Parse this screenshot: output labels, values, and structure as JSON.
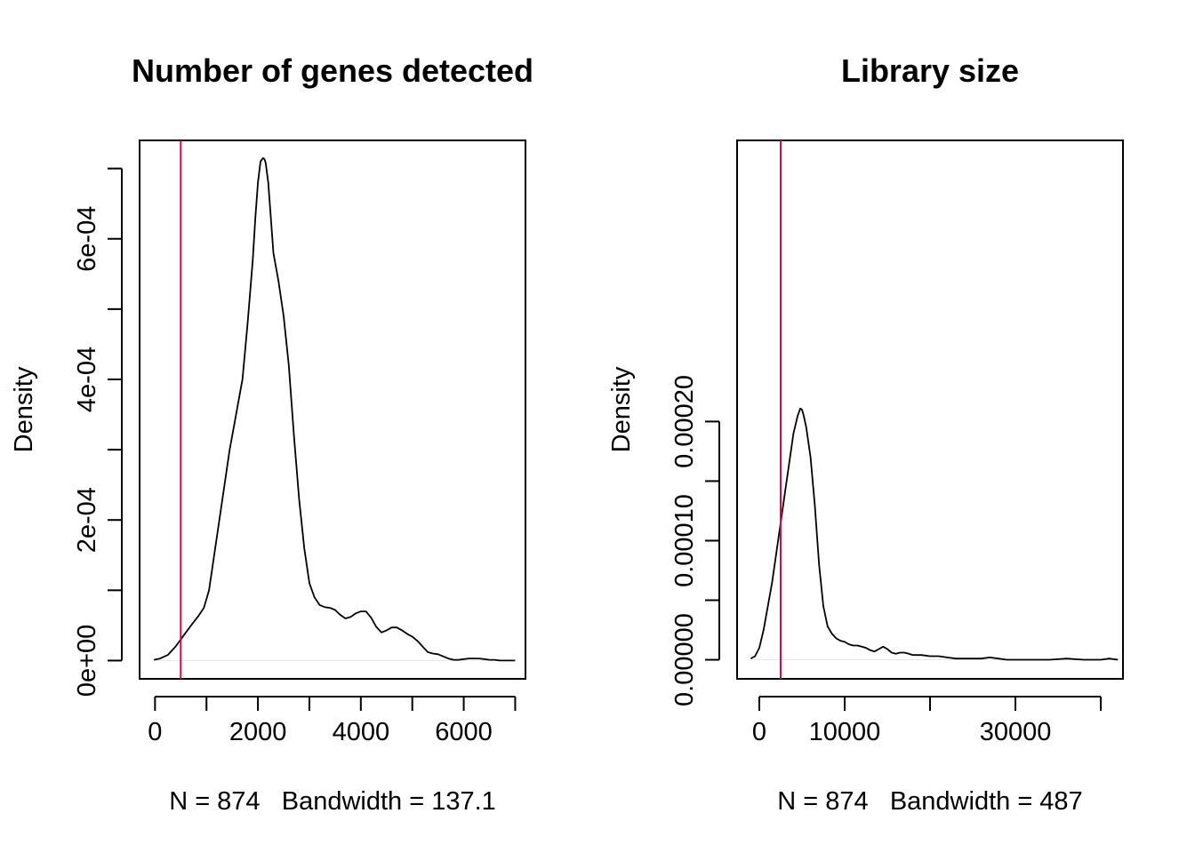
{
  "chart_data": [
    {
      "type": "line",
      "title": "Number of genes detected",
      "xlabel": "N = 874   Bandwidth = 137.1",
      "ylabel": "Density",
      "xlim": [
        -300,
        7200
      ],
      "ylim": [
        -2.6e-05,
        0.00074
      ],
      "x_ticks": [
        0,
        1000,
        2000,
        3000,
        4000,
        5000,
        6000,
        7000
      ],
      "x_tick_labels": [
        {
          "value": 0,
          "label": "0"
        },
        {
          "value": 2000,
          "label": "2000"
        },
        {
          "value": 4000,
          "label": "4000"
        },
        {
          "value": 6000,
          "label": "6000"
        }
      ],
      "y_ticks": [
        0,
        0.0001,
        0.0002,
        0.0003,
        0.0004,
        0.0005,
        0.0006,
        0.0007
      ],
      "y_tick_labels": [
        {
          "value": 0,
          "label": "0e+00"
        },
        {
          "value": 0.0002,
          "label": "2e-04"
        },
        {
          "value": 0.0004,
          "label": "4e-04"
        },
        {
          "value": 0.0006,
          "label": "6e-04"
        }
      ],
      "vline": {
        "x": 500,
        "color": "#cd0b4b"
      },
      "series": [
        {
          "color": "#000000",
          "x": [
            -20,
            100,
            250,
            400,
            550,
            700,
            850,
            950,
            1050,
            1150,
            1250,
            1350,
            1450,
            1550,
            1650,
            1700,
            1800,
            1900,
            1950,
            2000,
            2050,
            2100,
            2130,
            2150,
            2200,
            2250,
            2300,
            2350,
            2400,
            2500,
            2600,
            2700,
            2800,
            2900,
            3000,
            3100,
            3200,
            3300,
            3400,
            3500,
            3600,
            3700,
            3800,
            3900,
            4000,
            4100,
            4200,
            4300,
            4400,
            4500,
            4600,
            4700,
            4800,
            4900,
            5000,
            5100,
            5200,
            5300,
            5400,
            5500,
            5600,
            5700,
            5800,
            5900,
            6000,
            6100,
            6200,
            6300,
            6400,
            6500,
            6600,
            6700,
            6800,
            6900,
            7000
          ],
          "y": [
            1e-06,
            3e-06,
            8e-06,
            2e-05,
            3.5e-05,
            5e-05,
            6.4e-05,
            7.5e-05,
            0.0001,
            0.00015,
            0.0002,
            0.00025,
            0.0003,
            0.00034,
            0.00038,
            0.0004,
            0.00048,
            0.00057,
            0.00063,
            0.00068,
            0.00071,
            0.000715,
            0.000713,
            0.000708,
            0.00068,
            0.00063,
            0.00058,
            0.00056,
            0.00054,
            0.00049,
            0.00042,
            0.00032,
            0.00023,
            0.00016,
            0.00011,
            9e-05,
            7.9e-05,
            7.6e-05,
            7.5e-05,
            7.2e-05,
            6.5e-05,
            6e-05,
            6.2e-05,
            6.7e-05,
            7e-05,
            7e-05,
            6.1e-05,
            4.8e-05,
            4e-05,
            4.3e-05,
            4.7e-05,
            4.7e-05,
            4.3e-05,
            3.8e-05,
            3.4e-05,
            2.8e-05,
            2e-05,
            1.2e-05,
            1e-05,
            9e-06,
            6e-06,
            3e-06,
            1e-06,
            1e-06,
            2e-06,
            3e-06,
            3e-06,
            3e-06,
            2e-06,
            1e-06,
            1e-06,
            0.0,
            0.0,
            0.0,
            0.0
          ]
        }
      ]
    },
    {
      "type": "line",
      "title": "Library size",
      "xlabel": "N = 874   Bandwidth = 487",
      "ylabel": "Density",
      "xlim": [
        -2600,
        42600
      ],
      "ylim": [
        -1.6e-05,
        0.000436
      ],
      "x_ticks": [
        0,
        10000,
        20000,
        30000,
        40000
      ],
      "x_tick_labels": [
        {
          "value": 0,
          "label": "0"
        },
        {
          "value": 10000,
          "label": "10000"
        },
        {
          "value": 30000,
          "label": "30000"
        }
      ],
      "y_ticks": [
        0,
        5e-05,
        0.0001,
        0.00015,
        0.0002
      ],
      "y_tick_labels": [
        {
          "value": 0,
          "label": "0.00000"
        },
        {
          "value": 0.0001,
          "label": "0.00010"
        },
        {
          "value": 0.0002,
          "label": "0.00020"
        }
      ],
      "vline": {
        "x": 2500,
        "color": "#cd0b4b"
      },
      "series": [
        {
          "color": "#000000",
          "x": [
            -1000,
            -500,
            0,
            500,
            1000,
            1500,
            2000,
            2500,
            3000,
            3500,
            4000,
            4500,
            4800,
            5000,
            5200,
            5500,
            6000,
            6500,
            7000,
            7500,
            8000,
            8500,
            9000,
            9500,
            10000,
            10500,
            11000,
            11500,
            12000,
            12500,
            13000,
            13500,
            14000,
            14500,
            15000,
            15500,
            16000,
            16500,
            17000,
            17500,
            18000,
            19000,
            20000,
            21000,
            22000,
            23000,
            24000,
            25000,
            26000,
            27000,
            28000,
            29000,
            30000,
            32000,
            34000,
            36000,
            38000,
            39000,
            40000,
            41000,
            42000
          ],
          "y": [
            1e-06,
            3e-06,
            1e-05,
            2.5e-05,
            4.5e-05,
            6.5e-05,
            9e-05,
            0.000115,
            0.00014,
            0.000165,
            0.00019,
            0.000205,
            0.000211,
            0.00021,
            0.000205,
            0.000195,
            0.00017,
            0.00013,
            8e-05,
            4.5e-05,
            2.8e-05,
            2.2e-05,
            1.8e-05,
            1.6e-05,
            1.5e-05,
            1.3e-05,
            1.2e-05,
            1.2e-05,
            1.1e-05,
            1e-05,
            8e-06,
            7e-06,
            9e-06,
            1.1e-05,
            9e-06,
            6e-06,
            5e-06,
            6e-06,
            6e-06,
            5e-06,
            4e-06,
            4e-06,
            3e-06,
            3e-06,
            2e-06,
            1e-06,
            1e-06,
            1e-06,
            1e-06,
            2e-06,
            1e-06,
            0.0,
            0.0,
            0.0,
            0.0,
            1e-06,
            0.0,
            0.0,
            0.0,
            1e-06,
            0.0
          ]
        }
      ]
    }
  ]
}
